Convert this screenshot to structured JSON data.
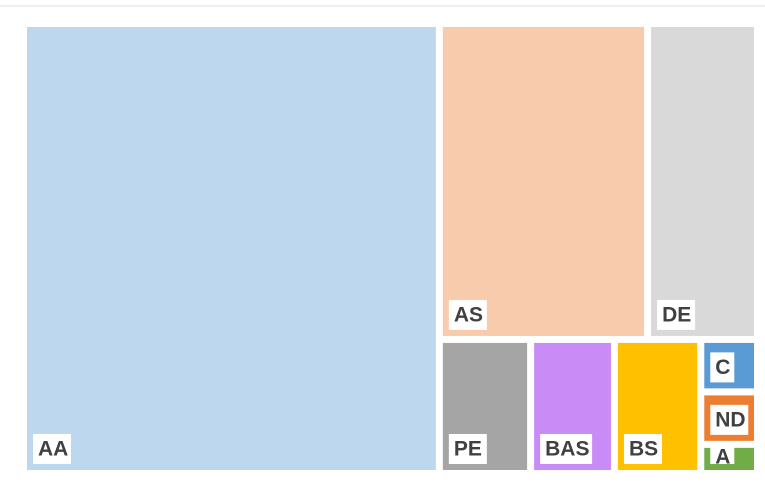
{
  "chart_data": {
    "type": "treemap",
    "categories": [
      "AA",
      "AS",
      "DE",
      "PE",
      "BAS",
      "BS",
      "C",
      "ND",
      "A"
    ],
    "values": [
      56.6,
      19.9,
      10.5,
      3.7,
      3.4,
      3.5,
      0.9,
      0.9,
      0.5
    ],
    "colors": [
      "#bdd7ee",
      "#f8cbad",
      "#d9d9d9",
      "#a5a5a5",
      "#c98cf7",
      "#ffc000",
      "#5b9bd5",
      "#ed7d31",
      "#70ad47"
    ]
  }
}
